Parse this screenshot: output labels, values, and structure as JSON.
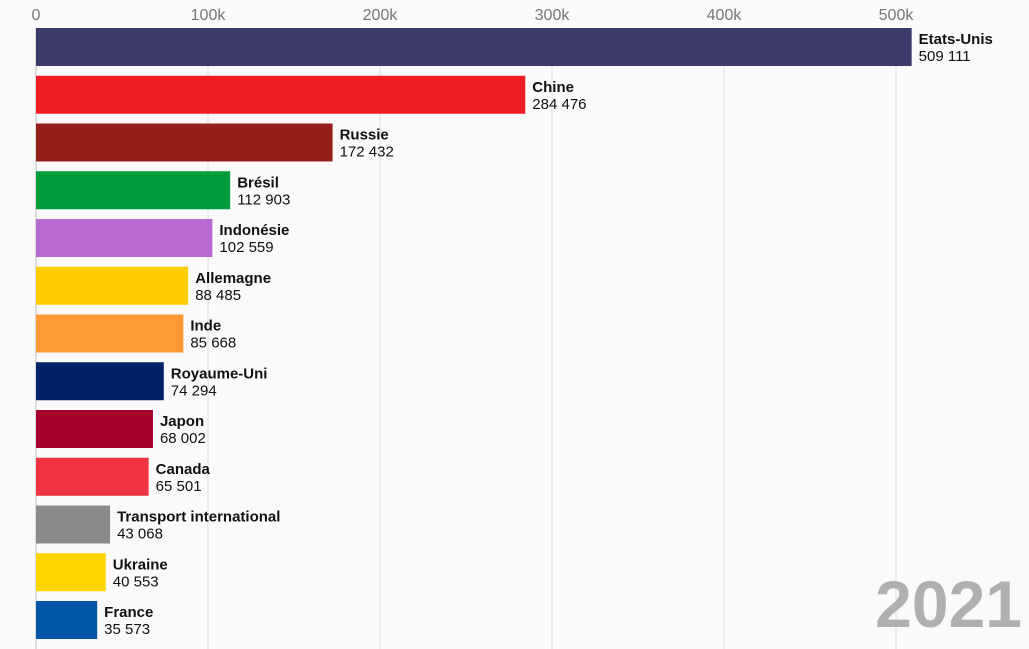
{
  "chart_data": {
    "type": "bar",
    "orientation": "horizontal",
    "year_label": "2021",
    "x_axis": {
      "min": 0,
      "max": 550000,
      "ticks": [
        0,
        100000,
        200000,
        300000,
        400000,
        500000
      ],
      "tick_labels": [
        "0",
        "100k",
        "200k",
        "300k",
        "400k",
        "500k"
      ],
      "position": "top",
      "grid": true
    },
    "categories": [
      "Etats-Unis",
      "Chine",
      "Russie",
      "Brésil",
      "Indonésie",
      "Allemagne",
      "Inde",
      "Royaume-Uni",
      "Japon",
      "Canada",
      "Transport international",
      "Ukraine",
      "France"
    ],
    "values": [
      509111,
      284476,
      172432,
      112903,
      102559,
      88485,
      85668,
      74294,
      68002,
      65501,
      43068,
      40553,
      35573
    ],
    "value_labels": [
      "509 111",
      "284 476",
      "172 432",
      "112 903",
      "102 559",
      "88 485",
      "85 668",
      "74 294",
      "68 002",
      "65 501",
      "43 068",
      "40 553",
      "35 573"
    ],
    "colors": [
      "#3c3b6c",
      "#ef1c25",
      "#952019",
      "#009b3a",
      "#b86ad3",
      "#ffcc00",
      "#ff9933",
      "#012169",
      "#a5002a",
      "#ef3340",
      "#8a8a8a",
      "#ffd500",
      "#0055a4"
    ]
  }
}
